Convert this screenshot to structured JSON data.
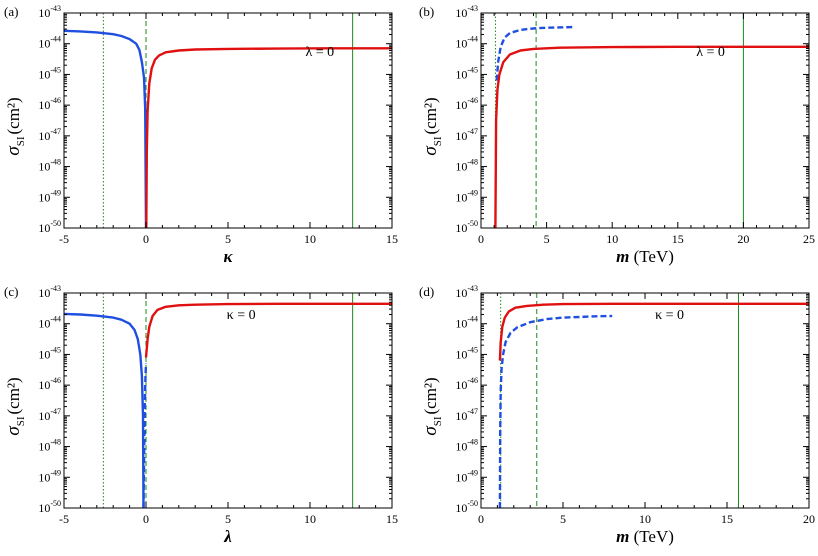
{
  "chart_data": [
    {
      "type": "line",
      "panel_label": "(a)",
      "xlabel": "κ",
      "xlabel_unit": "",
      "ylabel_main": "σ",
      "ylabel_sub": "SI",
      "ylabel_unit": "(cm²)",
      "xlim": [
        -5,
        15
      ],
      "xticks": [
        "-5",
        "0",
        "5",
        "10",
        "15"
      ],
      "ylim_exp": [
        -50,
        -43
      ],
      "yticks_exp": [
        "-50",
        "-49",
        "-48",
        "-47",
        "-46",
        "-45",
        "-44",
        "-43"
      ],
      "ytick_base": "10",
      "annotation": "λ = 0",
      "annotation_at": [
        10.6,
        -44.4
      ],
      "colors": {
        "blue": "#1f4fe0",
        "red": "#e01010",
        "green": "#1a8a1a"
      },
      "vlines": [
        {
          "x": -2.6,
          "style": "dotted",
          "color": "#1a8a1a"
        },
        {
          "x": 0.0,
          "style": "dashed",
          "color": "#1a8a1a"
        },
        {
          "x": 12.6,
          "style": "solid",
          "color": "#1a8a1a"
        }
      ],
      "series": [
        {
          "name": "blue solid",
          "color": "#1f4fe0",
          "dash": "solid",
          "x": [
            -5,
            -4,
            -3,
            -2,
            -1.5,
            -1,
            -0.6,
            -0.4,
            -0.25,
            -0.12,
            -0.05,
            0.0
          ],
          "logy": [
            -43.58,
            -43.6,
            -43.63,
            -43.69,
            -43.75,
            -43.85,
            -44.0,
            -44.2,
            -44.6,
            -45.1,
            -46.1,
            -50
          ]
        },
        {
          "name": "red solid",
          "color": "#e01010",
          "dash": "solid",
          "x": [
            0.02,
            0.05,
            0.1,
            0.2,
            0.35,
            0.55,
            0.8,
            1.2,
            2,
            3,
            5,
            8,
            11,
            15
          ],
          "logy": [
            -50,
            -47.5,
            -46.2,
            -45.3,
            -44.8,
            -44.52,
            -44.38,
            -44.28,
            -44.22,
            -44.19,
            -44.17,
            -44.16,
            -44.15,
            -44.15
          ]
        }
      ]
    },
    {
      "type": "line",
      "panel_label": "(b)",
      "xlabel": "m",
      "xlabel_unit": "(TeV)",
      "ylabel_main": "σ",
      "ylabel_sub": "SI",
      "ylabel_unit": "(cm²)",
      "xlim": [
        0,
        25
      ],
      "xticks": [
        "0",
        "5",
        "10",
        "15",
        "20",
        "25"
      ],
      "ylim_exp": [
        -50,
        -43
      ],
      "yticks_exp": [
        "-50",
        "-49",
        "-48",
        "-47",
        "-46",
        "-45",
        "-44",
        "-43"
      ],
      "ytick_base": "10",
      "annotation": "λ = 0",
      "annotation_at": [
        17.5,
        -44.4
      ],
      "colors": {
        "blue": "#1f4fe0",
        "red": "#e01010",
        "green": "#1a8a1a"
      },
      "vlines": [
        {
          "x": 1.1,
          "style": "dotted",
          "color": "#1a8a1a"
        },
        {
          "x": 4.2,
          "style": "dashed",
          "color": "#1a8a1a"
        },
        {
          "x": 20.0,
          "style": "solid",
          "color": "#1a8a1a"
        }
      ],
      "series": [
        {
          "name": "blue dashed",
          "color": "#1f4fe0",
          "dash": "dashed",
          "x": [
            1.2,
            1.3,
            1.5,
            1.8,
            2.2,
            3,
            4,
            5,
            6,
            7
          ],
          "logy": [
            -45.2,
            -44.6,
            -44.1,
            -43.8,
            -43.65,
            -43.55,
            -43.5,
            -43.48,
            -43.47,
            -43.46
          ]
        },
        {
          "name": "red solid",
          "color": "#e01010",
          "dash": "solid",
          "x": [
            1.1,
            1.15,
            1.25,
            1.4,
            1.7,
            2.2,
            3,
            4,
            6,
            10,
            15,
            20,
            25
          ],
          "logy": [
            -50,
            -46.5,
            -45.5,
            -45.0,
            -44.6,
            -44.35,
            -44.22,
            -44.17,
            -44.13,
            -44.11,
            -44.1,
            -44.1,
            -44.1
          ]
        }
      ]
    },
    {
      "type": "line",
      "panel_label": "(c)",
      "xlabel": "λ",
      "xlabel_unit": "",
      "ylabel_main": "σ",
      "ylabel_sub": "SI",
      "ylabel_unit": "(cm²)",
      "xlim": [
        -5,
        15
      ],
      "xticks": [
        "-5",
        "0",
        "5",
        "10",
        "15"
      ],
      "ylim_exp": [
        -50,
        -43
      ],
      "yticks_exp": [
        "-50",
        "-49",
        "-48",
        "-47",
        "-46",
        "-45",
        "-44",
        "-43"
      ],
      "ytick_base": "10",
      "annotation": "κ = 0",
      "annotation_at": [
        5.8,
        -43.85
      ],
      "colors": {
        "blue": "#1f4fe0",
        "red": "#e01010",
        "green": "#1a8a1a"
      },
      "vlines": [
        {
          "x": -2.6,
          "style": "dotted",
          "color": "#1a8a1a"
        },
        {
          "x": 0.0,
          "style": "dashed",
          "color": "#1a8a1a"
        },
        {
          "x": 12.6,
          "style": "solid",
          "color": "#1a8a1a"
        }
      ],
      "series": [
        {
          "name": "blue solid",
          "color": "#1f4fe0",
          "dash": "solid",
          "x": [
            -5,
            -4,
            -3,
            -2,
            -1.5,
            -1,
            -0.7,
            -0.5,
            -0.35,
            -0.25,
            -0.18,
            -0.15
          ],
          "logy": [
            -43.68,
            -43.7,
            -43.74,
            -43.8,
            -43.87,
            -44.0,
            -44.2,
            -44.5,
            -45.0,
            -45.7,
            -47.0,
            -50
          ]
        },
        {
          "name": "blue dashed",
          "color": "#1f4fe0",
          "dash": "dashed",
          "x": [
            -0.15,
            -0.1,
            -0.06,
            -0.03,
            0.0
          ],
          "logy": [
            -50,
            -47.5,
            -46.3,
            -45.7,
            -45.3
          ]
        },
        {
          "name": "red solid",
          "color": "#e01010",
          "dash": "solid",
          "x": [
            0.0,
            0.1,
            0.2,
            0.4,
            0.7,
            1.2,
            2,
            3,
            5,
            8,
            12,
            15
          ],
          "logy": [
            -45.1,
            -44.5,
            -44.1,
            -43.75,
            -43.55,
            -43.45,
            -43.4,
            -43.38,
            -43.36,
            -43.35,
            -43.35,
            -43.35
          ]
        }
      ]
    },
    {
      "type": "line",
      "panel_label": "(d)",
      "xlabel": "m",
      "xlabel_unit": "(TeV)",
      "ylabel_main": "σ",
      "ylabel_sub": "SI",
      "ylabel_unit": "(cm²)",
      "xlim": [
        0,
        20
      ],
      "xticks": [
        "0",
        "5",
        "10",
        "15",
        "20"
      ],
      "ylim_exp": [
        -50,
        -43
      ],
      "yticks_exp": [
        "-50",
        "-49",
        "-48",
        "-47",
        "-46",
        "-45",
        "-44",
        "-43"
      ],
      "ytick_base": "10",
      "annotation": "κ = 0",
      "annotation_at": [
        11.5,
        -43.85
      ],
      "colors": {
        "blue": "#1f4fe0",
        "red": "#e01010",
        "green": "#1a8a1a"
      },
      "vlines": [
        {
          "x": 1.2,
          "style": "dotted",
          "color": "#1a8a1a"
        },
        {
          "x": 3.4,
          "style": "dashed",
          "color": "#1a8a1a"
        },
        {
          "x": 15.7,
          "style": "solid",
          "color": "#1a8a1a"
        }
      ],
      "series": [
        {
          "name": "blue dashed",
          "color": "#1f4fe0",
          "dash": "dashed",
          "x": [
            1.15,
            1.17,
            1.2,
            1.25,
            1.35,
            1.5,
            1.8,
            2.2,
            3,
            4,
            5,
            6,
            7,
            8
          ],
          "logy": [
            -50,
            -47.5,
            -46.2,
            -45.5,
            -45.0,
            -44.6,
            -44.3,
            -44.12,
            -43.95,
            -43.85,
            -43.8,
            -43.78,
            -43.76,
            -43.75
          ]
        },
        {
          "name": "red solid",
          "color": "#e01010",
          "dash": "solid",
          "x": [
            1.15,
            1.2,
            1.3,
            1.45,
            1.7,
            2.1,
            2.8,
            3.8,
            5,
            8,
            12,
            16,
            20
          ],
          "logy": [
            -45.2,
            -44.6,
            -44.1,
            -43.8,
            -43.6,
            -43.48,
            -43.42,
            -43.38,
            -43.36,
            -43.35,
            -43.35,
            -43.35,
            -43.35
          ]
        }
      ]
    }
  ]
}
